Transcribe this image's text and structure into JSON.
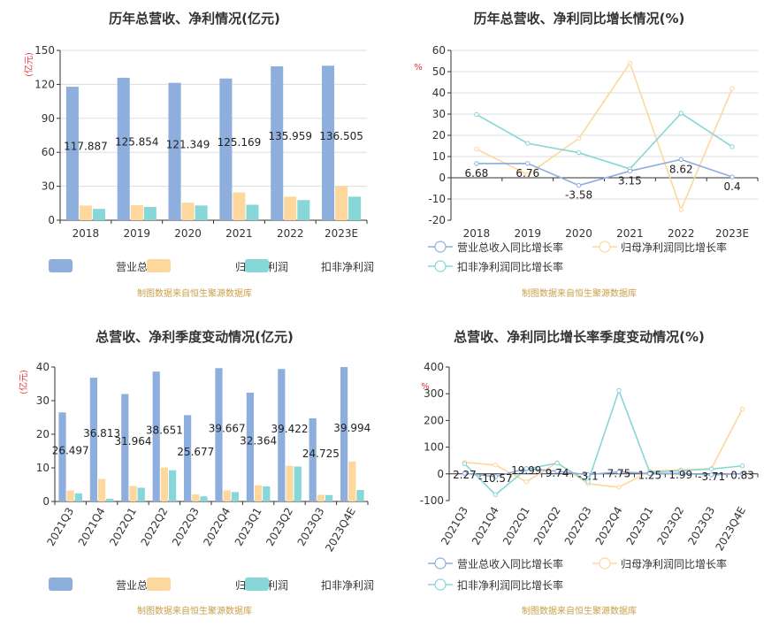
{
  "source_note": "制图数据来自恒生聚源数据库",
  "colors": {
    "revenue": "#8eaedd",
    "net_profit": "#fdd79b",
    "deducted_profit": "#87d6d8",
    "grid": "#dddddd",
    "axis": "#333333",
    "unit": "#e4393c",
    "source": "#c8a04a"
  },
  "chart_data": [
    {
      "id": "annual-amount",
      "type": "bar",
      "title": "历年总营收、净利情况(亿元)",
      "ylabel": "(亿元)",
      "ylim": [
        0,
        150
      ],
      "yticks": [
        0,
        30,
        60,
        90,
        120,
        150
      ],
      "categories": [
        "2018",
        "2019",
        "2020",
        "2021",
        "2022",
        "2023E"
      ],
      "series": [
        {
          "name": "营业总收入",
          "values": [
            117.887,
            125.854,
            121.349,
            125.169,
            135.959,
            136.505
          ],
          "labels": [
            "117.887",
            "125.854",
            "121.349",
            "125.169",
            "135.959",
            "136.505"
          ]
        },
        {
          "name": "归母净利润",
          "values": [
            13.0,
            13.2,
            15.5,
            24.5,
            20.8,
            30.2
          ]
        },
        {
          "name": "扣非净利润",
          "values": [
            10.0,
            11.7,
            13.0,
            13.7,
            17.8,
            20.8
          ]
        }
      ],
      "grid": true,
      "legend": "bottom"
    },
    {
      "id": "annual-growth",
      "type": "line",
      "title": "历年总营收、净利同比增长情况(%)",
      "ylabel": "%",
      "ylim": [
        -20,
        60
      ],
      "yticks": [
        -20,
        -10,
        0,
        10,
        20,
        30,
        40,
        50,
        60
      ],
      "categories": [
        "2018",
        "2019",
        "2020",
        "2021",
        "2022",
        "2023E"
      ],
      "series": [
        {
          "name": "营业总收入同比增长率",
          "values": [
            6.68,
            6.76,
            -3.58,
            3.15,
            8.62,
            0.4
          ],
          "labels": [
            "6.68",
            "6.76",
            "-3.58",
            "3.15",
            "8.62",
            "0.4"
          ]
        },
        {
          "name": "归母净利润同比增长率",
          "values": [
            13.5,
            1.5,
            18.5,
            54.0,
            -15.0,
            42.0
          ]
        },
        {
          "name": "扣非净利润同比增长率",
          "values": [
            29.8,
            16.2,
            11.8,
            4.2,
            30.4,
            14.6
          ]
        }
      ],
      "grid": true,
      "legend": "bottom"
    },
    {
      "id": "quarterly-amount",
      "type": "bar",
      "title": "总营收、净利季度变动情况(亿元)",
      "ylabel": "(亿元)",
      "ylim": [
        0,
        40
      ],
      "yticks": [
        0,
        10,
        20,
        30,
        40
      ],
      "categories": [
        "2021Q3",
        "2021Q4",
        "2022Q1",
        "2022Q2",
        "2022Q3",
        "2022Q4",
        "2023Q1",
        "2023Q2",
        "2023Q3",
        "2023Q4E"
      ],
      "series": [
        {
          "name": "营业总收入",
          "values": [
            26.497,
            36.813,
            31.964,
            38.651,
            25.677,
            39.667,
            32.364,
            39.422,
            24.725,
            39.994
          ],
          "labels": [
            "26.497",
            "36.813",
            "31.964",
            "38.651",
            "25.677",
            "39.667",
            "32.364",
            "39.422",
            "24.725",
            "39.994"
          ]
        },
        {
          "name": "归母净利润",
          "values": [
            3.3,
            6.7,
            4.6,
            10.1,
            2.1,
            3.3,
            4.8,
            10.6,
            2.0,
            11.9
          ]
        },
        {
          "name": "扣非净利润",
          "values": [
            2.4,
            0.8,
            4.1,
            9.3,
            1.5,
            2.8,
            4.5,
            10.4,
            1.9,
            3.4
          ]
        }
      ],
      "grid": false,
      "legend": "bottom"
    },
    {
      "id": "quarterly-growth",
      "type": "line",
      "title": "总营收、净利同比增长率季度变动情况(%)",
      "ylabel": "%",
      "ylim": [
        -100,
        400
      ],
      "yticks": [
        -100,
        0,
        100,
        200,
        300,
        400
      ],
      "categories": [
        "2021Q3",
        "2021Q4",
        "2022Q1",
        "2022Q2",
        "2022Q3",
        "2022Q4",
        "2023Q1",
        "2023Q2",
        "2023Q3",
        "2023Q4E"
      ],
      "series": [
        {
          "name": "营业总收入同比增长率",
          "values": [
            2.27,
            -10.57,
            19.99,
            9.74,
            -3.1,
            7.75,
            1.25,
            1.99,
            -3.71,
            0.83
          ],
          "labels": [
            "2.27",
            "-10.57",
            "19.99",
            "9.74",
            "-3.1",
            "7.75",
            "1.25",
            "1.99",
            "-3.71",
            "0.83"
          ]
        },
        {
          "name": "归母净利润同比增长率",
          "values": [
            43,
            33,
            -30,
            42,
            -37,
            -50,
            10,
            15,
            20,
            243
          ]
        },
        {
          "name": "扣非净利润同比增长率",
          "values": [
            38,
            -78,
            18,
            40,
            -30,
            312,
            6,
            12,
            18,
            30
          ]
        }
      ],
      "grid": false,
      "legend": "bottom"
    }
  ]
}
